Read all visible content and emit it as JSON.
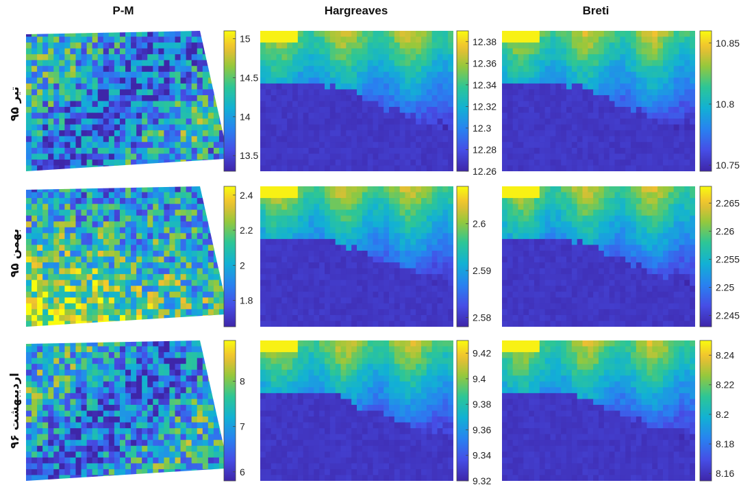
{
  "chart_data": {
    "type": "heatmap",
    "columns": [
      "P-M",
      "Hargreaves",
      "Breti"
    ],
    "rows": [
      "تیر ۹۵",
      "بهمن ۹۵",
      "اردیبهشت ۹۶"
    ],
    "panels": [
      {
        "row": "تیر ۹۵",
        "column": "P-M",
        "colorbar_range": [
          13.3,
          15.1
        ],
        "ticks": [
          13.5,
          14,
          14.5,
          15
        ]
      },
      {
        "row": "تیر ۹۵",
        "column": "Hargreaves",
        "colorbar_range": [
          12.26,
          12.39
        ],
        "ticks": [
          12.26,
          12.28,
          12.3,
          12.32,
          12.34,
          12.36,
          12.38
        ]
      },
      {
        "row": "تیر ۹۵",
        "column": "Breti",
        "colorbar_range": [
          10.745,
          10.86
        ],
        "ticks": [
          10.75,
          10.8,
          10.85
        ]
      },
      {
        "row": "بهمن ۹۵",
        "column": "P-M",
        "colorbar_range": [
          1.65,
          2.45
        ],
        "ticks": [
          1.8,
          2,
          2.2,
          2.4
        ]
      },
      {
        "row": "بهمن ۹۵",
        "column": "Hargreaves",
        "colorbar_range": [
          2.578,
          2.608
        ],
        "ticks": [
          2.58,
          2.59,
          2.6
        ]
      },
      {
        "row": "بهمن ۹۵",
        "column": "Breti",
        "colorbar_range": [
          2.243,
          2.268
        ],
        "ticks": [
          2.245,
          2.25,
          2.255,
          2.26,
          2.265
        ]
      },
      {
        "row": "اردیبهشت ۹۶",
        "column": "P-M",
        "colorbar_range": [
          5.8,
          8.9
        ],
        "ticks": [
          6,
          7,
          8
        ]
      },
      {
        "row": "اردیبهشت ۹۶",
        "column": "Hargreaves",
        "colorbar_range": [
          9.32,
          9.43
        ],
        "ticks": [
          9.32,
          9.34,
          9.36,
          9.38,
          9.4,
          9.42
        ]
      },
      {
        "row": "اردیبهشت ۹۶",
        "column": "Breti",
        "colorbar_range": [
          8.155,
          8.25
        ],
        "ticks": [
          8.16,
          8.18,
          8.2,
          8.22,
          8.24
        ]
      }
    ],
    "colormap": "parula",
    "colors": {
      "low": "#3e26a8",
      "mid": "#16b2c8",
      "high": "#f9fb0e"
    }
  }
}
